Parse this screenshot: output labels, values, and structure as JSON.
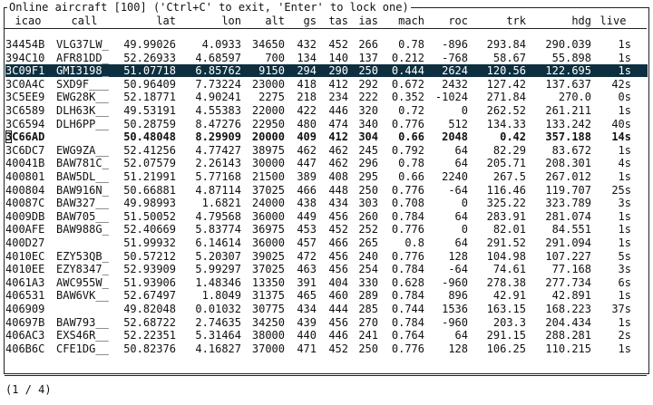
{
  "title": "Online aircraft [100] ('Ctrl+C' to exit, 'Enter' to lock one)",
  "columns": [
    "icao",
    "call",
    "lat",
    "lon",
    "alt",
    "gs",
    "tas",
    "ias",
    "mach",
    "roc",
    "trk",
    "hdg",
    "live"
  ],
  "rows": [
    {
      "icao": "34454B",
      "call": "VLG37LW_",
      "lat": "49.99026",
      "lon": "4.0933",
      "alt": "34650",
      "gs": "432",
      "tas": "452",
      "ias": "266",
      "mach": "0.78",
      "roc": "-896",
      "trk": "293.84",
      "hdg": "290.039",
      "live": "1s"
    },
    {
      "icao": "394C10",
      "call": "AFR81DD_",
      "lat": "52.26933",
      "lon": "4.68597",
      "alt": "700",
      "gs": "134",
      "tas": "140",
      "ias": "137",
      "mach": "0.212",
      "roc": "-768",
      "trk": "58.67",
      "hdg": "55.898",
      "live": "1s"
    },
    {
      "icao": "3C09F1",
      "call": "GMI3198_",
      "lat": "51.07718",
      "lon": "6.85762",
      "alt": "9150",
      "gs": "294",
      "tas": "290",
      "ias": "250",
      "mach": "0.444",
      "roc": "2624",
      "trk": "120.56",
      "hdg": "122.695",
      "live": "1s",
      "selected": true
    },
    {
      "icao": "3C0A4C",
      "call": "SXD9F___",
      "lat": "50.96409",
      "lon": "7.73224",
      "alt": "23000",
      "gs": "418",
      "tas": "412",
      "ias": "292",
      "mach": "0.672",
      "roc": "2432",
      "trk": "127.42",
      "hdg": "137.637",
      "live": "42s"
    },
    {
      "icao": "3C5EE9",
      "call": "EWG28K__",
      "lat": "52.18771",
      "lon": "4.90241",
      "alt": "2275",
      "gs": "218",
      "tas": "234",
      "ias": "222",
      "mach": "0.352",
      "roc": "-1024",
      "trk": "271.84",
      "hdg": "270.0",
      "live": "0s"
    },
    {
      "icao": "3C6589",
      "call": "DLH63K__",
      "lat": "49.53191",
      "lon": "4.55383",
      "alt": "22000",
      "gs": "422",
      "tas": "446",
      "ias": "320",
      "mach": "0.72",
      "roc": "0",
      "trk": "262.52",
      "hdg": "261.211",
      "live": "1s"
    },
    {
      "icao": "3C6594",
      "call": "DLH6PP__",
      "lat": "50.28759",
      "lon": "8.47276",
      "alt": "22950",
      "gs": "480",
      "tas": "474",
      "ias": "340",
      "mach": "0.776",
      "roc": "512",
      "trk": "134.33",
      "hdg": "133.242",
      "live": "40s"
    },
    {
      "icao": "3C66AD",
      "call": "",
      "lat": "50.48048",
      "lon": "8.29909",
      "alt": "20000",
      "gs": "409",
      "tas": "412",
      "ias": "304",
      "mach": "0.66",
      "roc": "2048",
      "trk": "0.42",
      "hdg": "357.188",
      "live": "14s",
      "bold": true,
      "cursor": true
    },
    {
      "icao": "3C6DC7",
      "call": "EWG9ZA__",
      "lat": "52.41256",
      "lon": "4.77427",
      "alt": "38975",
      "gs": "462",
      "tas": "462",
      "ias": "245",
      "mach": "0.792",
      "roc": "64",
      "trk": "82.29",
      "hdg": "83.672",
      "live": "1s"
    },
    {
      "icao": "40041B",
      "call": "BAW781C_",
      "lat": "52.07579",
      "lon": "2.26143",
      "alt": "30000",
      "gs": "447",
      "tas": "462",
      "ias": "296",
      "mach": "0.78",
      "roc": "64",
      "trk": "205.71",
      "hdg": "208.301",
      "live": "4s"
    },
    {
      "icao": "400801",
      "call": "BAW5DL__",
      "lat": "51.21991",
      "lon": "5.77168",
      "alt": "21500",
      "gs": "389",
      "tas": "408",
      "ias": "295",
      "mach": "0.66",
      "roc": "2240",
      "trk": "267.5",
      "hdg": "267.012",
      "live": "1s"
    },
    {
      "icao": "400804",
      "call": "BAW916N_",
      "lat": "50.66881",
      "lon": "4.87114",
      "alt": "37025",
      "gs": "466",
      "tas": "448",
      "ias": "250",
      "mach": "0.776",
      "roc": "-64",
      "trk": "116.46",
      "hdg": "119.707",
      "live": "25s"
    },
    {
      "icao": "40087C",
      "call": "BAW327__",
      "lat": "49.98993",
      "lon": "1.6821",
      "alt": "24000",
      "gs": "438",
      "tas": "434",
      "ias": "303",
      "mach": "0.708",
      "roc": "0",
      "trk": "325.22",
      "hdg": "323.789",
      "live": "3s"
    },
    {
      "icao": "4009DB",
      "call": "BAW705__",
      "lat": "51.50052",
      "lon": "4.79568",
      "alt": "36000",
      "gs": "449",
      "tas": "456",
      "ias": "260",
      "mach": "0.784",
      "roc": "64",
      "trk": "283.91",
      "hdg": "281.074",
      "live": "1s"
    },
    {
      "icao": "400AFE",
      "call": "BAW988G_",
      "lat": "52.40669",
      "lon": "5.83774",
      "alt": "36975",
      "gs": "453",
      "tas": "452",
      "ias": "252",
      "mach": "0.776",
      "roc": "0",
      "trk": "82.01",
      "hdg": "84.551",
      "live": "1s"
    },
    {
      "icao": "400D27",
      "call": "",
      "lat": "51.99932",
      "lon": "6.14614",
      "alt": "36000",
      "gs": "457",
      "tas": "466",
      "ias": "265",
      "mach": "0.8",
      "roc": "64",
      "trk": "291.52",
      "hdg": "291.094",
      "live": "1s"
    },
    {
      "icao": "4010EC",
      "call": "EZY53QB_",
      "lat": "50.57212",
      "lon": "5.20307",
      "alt": "39025",
      "gs": "472",
      "tas": "456",
      "ias": "240",
      "mach": "0.776",
      "roc": "128",
      "trk": "104.98",
      "hdg": "107.227",
      "live": "5s"
    },
    {
      "icao": "4010EE",
      "call": "EZY8347_",
      "lat": "52.93909",
      "lon": "5.99297",
      "alt": "37025",
      "gs": "463",
      "tas": "456",
      "ias": "254",
      "mach": "0.784",
      "roc": "-64",
      "trk": "74.61",
      "hdg": "77.168",
      "live": "3s"
    },
    {
      "icao": "4061A3",
      "call": "AWC955W_",
      "lat": "51.93906",
      "lon": "1.48346",
      "alt": "13350",
      "gs": "391",
      "tas": "404",
      "ias": "330",
      "mach": "0.628",
      "roc": "-960",
      "trk": "278.38",
      "hdg": "277.734",
      "live": "6s"
    },
    {
      "icao": "406531",
      "call": "BAW6VK__",
      "lat": "52.67497",
      "lon": "1.8049",
      "alt": "31375",
      "gs": "465",
      "tas": "460",
      "ias": "289",
      "mach": "0.784",
      "roc": "896",
      "trk": "42.91",
      "hdg": "42.891",
      "live": "1s"
    },
    {
      "icao": "406909",
      "call": "",
      "lat": "49.82048",
      "lon": "0.01032",
      "alt": "30775",
      "gs": "434",
      "tas": "444",
      "ias": "285",
      "mach": "0.744",
      "roc": "1536",
      "trk": "163.15",
      "hdg": "168.223",
      "live": "37s"
    },
    {
      "icao": "40697B",
      "call": "BAW793__",
      "lat": "52.68722",
      "lon": "2.74635",
      "alt": "34250",
      "gs": "439",
      "tas": "456",
      "ias": "270",
      "mach": "0.784",
      "roc": "-960",
      "trk": "203.3",
      "hdg": "204.434",
      "live": "1s"
    },
    {
      "icao": "406AC3",
      "call": "EXS46R__",
      "lat": "52.22351",
      "lon": "5.31464",
      "alt": "38000",
      "gs": "440",
      "tas": "446",
      "ias": "241",
      "mach": "0.764",
      "roc": "64",
      "trk": "291.15",
      "hdg": "288.281",
      "live": "2s"
    },
    {
      "icao": "406B6C",
      "call": "CFE1DG__",
      "lat": "50.82376",
      "lon": "4.16827",
      "alt": "37000",
      "gs": "471",
      "tas": "452",
      "ias": "250",
      "mach": "0.776",
      "roc": "128",
      "trk": "106.25",
      "hdg": "110.215",
      "live": "1s"
    }
  ],
  "footer": "(1 / 4)",
  "colors": {
    "selected_bg": "#0d2f3f",
    "selected_fg": "#ffffff",
    "text": "#111111",
    "background": "#ffffff"
  }
}
